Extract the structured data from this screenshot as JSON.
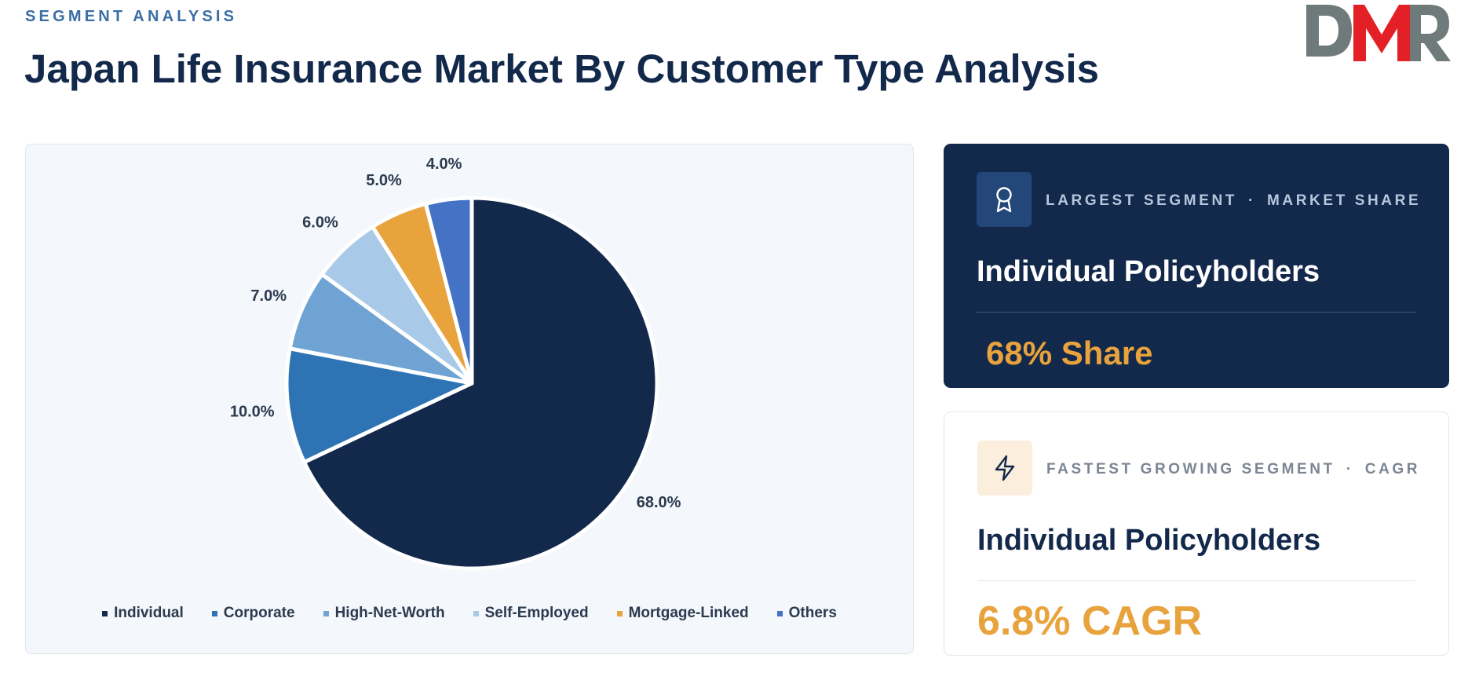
{
  "header": {
    "eyebrow": "SEGMENT ANALYSIS",
    "title": "Japan Life Insurance Market By Customer Type Analysis",
    "logo_text": "DMR"
  },
  "colors": {
    "navy": "#13294b",
    "accent_orange": "#e8a33d",
    "logo_red": "#e32026",
    "logo_gray": "#6f7a7a"
  },
  "chart_data": {
    "type": "pie",
    "start_angle_deg": 0,
    "direction": "clockwise",
    "legend_position": "bottom",
    "categories": [
      "Individual",
      "Corporate",
      "High-Net-Worth",
      "Self-Employed",
      "Mortgage-Linked",
      "Others"
    ],
    "values": [
      68.0,
      10.0,
      7.0,
      6.0,
      5.0,
      4.0
    ],
    "labels": [
      "68.0%",
      "10.0%",
      "7.0%",
      "6.0%",
      "5.0%",
      "4.0%"
    ],
    "colors": [
      "#13294b",
      "#2e74b5",
      "#6fa3d3",
      "#a9c9e8",
      "#e8a33d",
      "#4472c4"
    ]
  },
  "cards": [
    {
      "icon": "award-icon",
      "meta_label": "LARGEST SEGMENT",
      "meta_separator": "·",
      "meta_metric": "MARKET SHARE",
      "segment": "Individual Policyholders",
      "value": "68% Share"
    },
    {
      "icon": "lightning-icon",
      "meta_label": "FASTEST GROWING SEGMENT",
      "meta_separator": "·",
      "meta_metric": "CAGR",
      "segment": "Individual Policyholders",
      "value": "6.8% CAGR"
    }
  ]
}
